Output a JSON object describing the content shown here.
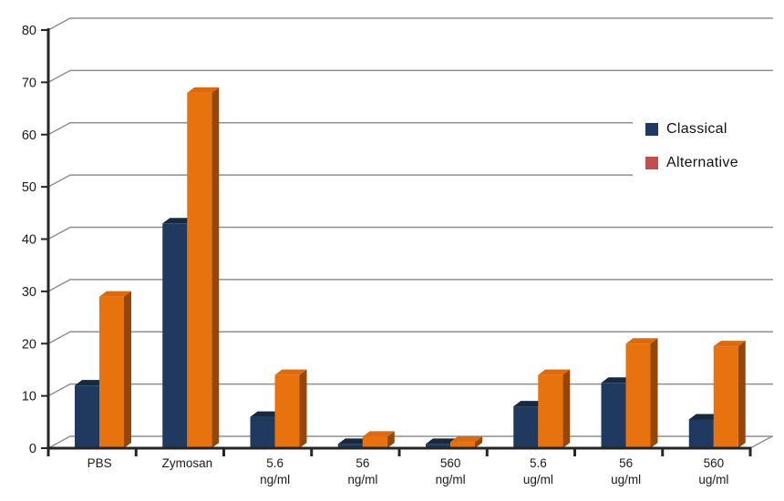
{
  "chart_data": {
    "type": "bar",
    "projection": "3d-clustered-column",
    "title": "",
    "xlabel": "",
    "ylabel": "",
    "categories": [
      "PBS",
      "Zymosan",
      "5.6 ng/ml",
      "56 ng/ml",
      "560 ng/ml",
      "5.6 ug/ml",
      "56 ug/ml",
      "560 ug/ml"
    ],
    "category_label_lines": [
      [
        "PBS"
      ],
      [
        "Zymosan"
      ],
      [
        "5.6",
        "ng/ml"
      ],
      [
        "56",
        "ng/ml"
      ],
      [
        "560",
        "ng/ml"
      ],
      [
        "5.6",
        "ug/ml"
      ],
      [
        "56",
        "ug/ml"
      ],
      [
        "560",
        "ug/ml"
      ]
    ],
    "series": [
      {
        "name": "Classical",
        "values": [
          12,
          43,
          6,
          0.8,
          0.8,
          8,
          12.5,
          5.5
        ],
        "front_color": "#1F3A5E",
        "top_color": "#16293F",
        "side_color": "#101F33"
      },
      {
        "name": "Alternative",
        "values": [
          29,
          68,
          14,
          2.2,
          1.2,
          14,
          20,
          19.5
        ],
        "front_color": "#E8720E",
        "top_color": "#DB6A10",
        "side_color": "#964708"
      }
    ],
    "ylim": [
      0,
      80
    ],
    "y_ticks": [
      0,
      10,
      20,
      30,
      40,
      50,
      60,
      70,
      80
    ],
    "grid": true,
    "legend_position": "right"
  },
  "legend": {
    "items": [
      {
        "label": "Classical",
        "swatch_color": "#1F3864"
      },
      {
        "label": "Alternative",
        "swatch_color": "#C0504D"
      }
    ]
  },
  "colors": {
    "background": "#FFFFFF",
    "gridline": "#8F8F8F",
    "axis": "#262626",
    "tick_label": "#1A1A1A"
  }
}
